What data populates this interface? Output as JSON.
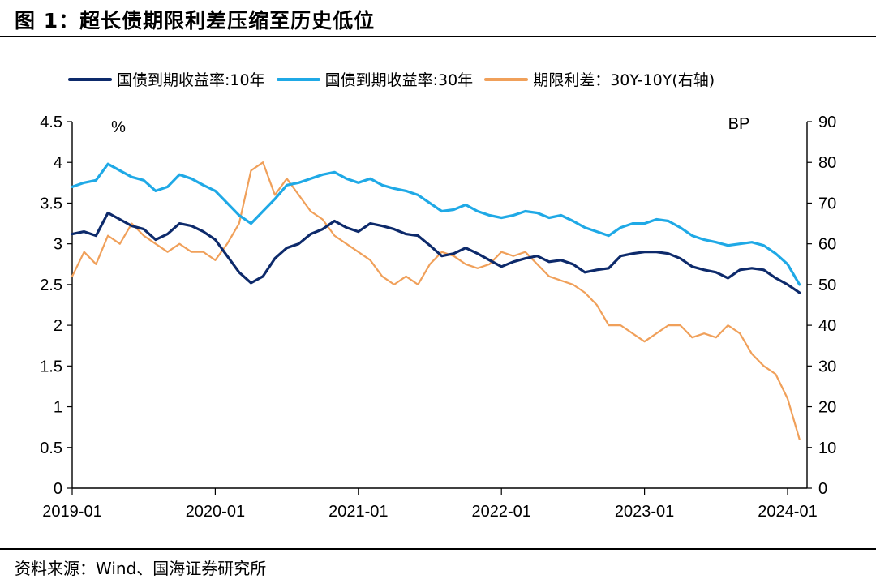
{
  "figure": {
    "title": "图 1：超长债期限利差压缩至历史低位",
    "source": "资料来源：Wind、国海证券研究所"
  },
  "chart_data": {
    "type": "line",
    "x_labels": [
      "2019-01",
      "2020-01",
      "2021-01",
      "2022-01",
      "2023-01",
      "2024-01"
    ],
    "left_axis": {
      "unit": "%",
      "ylim": [
        0,
        4.5
      ],
      "ticks": [
        "0",
        "0.5",
        "1",
        "1.5",
        "2",
        "2.5",
        "3",
        "3.5",
        "4",
        "4.5"
      ]
    },
    "right_axis": {
      "unit": "BP",
      "ylim": [
        0,
        90
      ],
      "ticks": [
        "0",
        "10",
        "20",
        "30",
        "40",
        "50",
        "60",
        "70",
        "80",
        "90"
      ]
    },
    "grid": false,
    "legend_position": "top",
    "series": [
      {
        "name": "国债到期收益率:10年",
        "axis": "left",
        "color": "#0d2a6b",
        "points": [
          [
            "2019-01",
            3.12
          ],
          [
            "2019-02",
            3.15
          ],
          [
            "2019-03",
            3.1
          ],
          [
            "2019-04",
            3.38
          ],
          [
            "2019-05",
            3.3
          ],
          [
            "2019-06",
            3.22
          ],
          [
            "2019-07",
            3.18
          ],
          [
            "2019-08",
            3.05
          ],
          [
            "2019-09",
            3.12
          ],
          [
            "2019-10",
            3.25
          ],
          [
            "2019-11",
            3.22
          ],
          [
            "2019-12",
            3.15
          ],
          [
            "2020-01",
            3.05
          ],
          [
            "2020-02",
            2.85
          ],
          [
            "2020-03",
            2.65
          ],
          [
            "2020-04",
            2.52
          ],
          [
            "2020-05",
            2.6
          ],
          [
            "2020-06",
            2.82
          ],
          [
            "2020-07",
            2.95
          ],
          [
            "2020-08",
            3.0
          ],
          [
            "2020-09",
            3.12
          ],
          [
            "2020-10",
            3.18
          ],
          [
            "2020-11",
            3.28
          ],
          [
            "2020-12",
            3.2
          ],
          [
            "2021-01",
            3.15
          ],
          [
            "2021-02",
            3.25
          ],
          [
            "2021-03",
            3.22
          ],
          [
            "2021-04",
            3.18
          ],
          [
            "2021-05",
            3.12
          ],
          [
            "2021-06",
            3.1
          ],
          [
            "2021-07",
            2.98
          ],
          [
            "2021-08",
            2.85
          ],
          [
            "2021-09",
            2.88
          ],
          [
            "2021-10",
            2.95
          ],
          [
            "2021-11",
            2.88
          ],
          [
            "2021-12",
            2.8
          ],
          [
            "2022-01",
            2.72
          ],
          [
            "2022-02",
            2.78
          ],
          [
            "2022-03",
            2.82
          ],
          [
            "2022-04",
            2.85
          ],
          [
            "2022-05",
            2.78
          ],
          [
            "2022-06",
            2.8
          ],
          [
            "2022-07",
            2.75
          ],
          [
            "2022-08",
            2.65
          ],
          [
            "2022-09",
            2.68
          ],
          [
            "2022-10",
            2.7
          ],
          [
            "2022-11",
            2.85
          ],
          [
            "2022-12",
            2.88
          ],
          [
            "2023-01",
            2.9
          ],
          [
            "2023-02",
            2.9
          ],
          [
            "2023-03",
            2.88
          ],
          [
            "2023-04",
            2.82
          ],
          [
            "2023-05",
            2.72
          ],
          [
            "2023-06",
            2.68
          ],
          [
            "2023-07",
            2.65
          ],
          [
            "2023-08",
            2.58
          ],
          [
            "2023-09",
            2.68
          ],
          [
            "2023-10",
            2.7
          ],
          [
            "2023-11",
            2.68
          ],
          [
            "2023-12",
            2.58
          ],
          [
            "2024-01",
            2.5
          ],
          [
            "2024-02",
            2.4
          ]
        ]
      },
      {
        "name": "国债到期收益率:30年",
        "axis": "left",
        "color": "#1fa9e6",
        "points": [
          [
            "2019-01",
            3.7
          ],
          [
            "2019-02",
            3.75
          ],
          [
            "2019-03",
            3.78
          ],
          [
            "2019-04",
            3.98
          ],
          [
            "2019-05",
            3.9
          ],
          [
            "2019-06",
            3.82
          ],
          [
            "2019-07",
            3.78
          ],
          [
            "2019-08",
            3.65
          ],
          [
            "2019-09",
            3.7
          ],
          [
            "2019-10",
            3.85
          ],
          [
            "2019-11",
            3.8
          ],
          [
            "2019-12",
            3.72
          ],
          [
            "2020-01",
            3.65
          ],
          [
            "2020-02",
            3.5
          ],
          [
            "2020-03",
            3.35
          ],
          [
            "2020-04",
            3.25
          ],
          [
            "2020-05",
            3.4
          ],
          [
            "2020-06",
            3.55
          ],
          [
            "2020-07",
            3.72
          ],
          [
            "2020-08",
            3.75
          ],
          [
            "2020-09",
            3.8
          ],
          [
            "2020-10",
            3.85
          ],
          [
            "2020-11",
            3.88
          ],
          [
            "2020-12",
            3.8
          ],
          [
            "2021-01",
            3.75
          ],
          [
            "2021-02",
            3.8
          ],
          [
            "2021-03",
            3.72
          ],
          [
            "2021-04",
            3.68
          ],
          [
            "2021-05",
            3.65
          ],
          [
            "2021-06",
            3.6
          ],
          [
            "2021-07",
            3.5
          ],
          [
            "2021-08",
            3.4
          ],
          [
            "2021-09",
            3.42
          ],
          [
            "2021-10",
            3.48
          ],
          [
            "2021-11",
            3.4
          ],
          [
            "2021-12",
            3.35
          ],
          [
            "2022-01",
            3.32
          ],
          [
            "2022-02",
            3.35
          ],
          [
            "2022-03",
            3.4
          ],
          [
            "2022-04",
            3.38
          ],
          [
            "2022-05",
            3.32
          ],
          [
            "2022-06",
            3.35
          ],
          [
            "2022-07",
            3.28
          ],
          [
            "2022-08",
            3.2
          ],
          [
            "2022-09",
            3.15
          ],
          [
            "2022-10",
            3.1
          ],
          [
            "2022-11",
            3.2
          ],
          [
            "2022-12",
            3.25
          ],
          [
            "2023-01",
            3.25
          ],
          [
            "2023-02",
            3.3
          ],
          [
            "2023-03",
            3.28
          ],
          [
            "2023-04",
            3.2
          ],
          [
            "2023-05",
            3.1
          ],
          [
            "2023-06",
            3.05
          ],
          [
            "2023-07",
            3.02
          ],
          [
            "2023-08",
            2.98
          ],
          [
            "2023-09",
            3.0
          ],
          [
            "2023-10",
            3.02
          ],
          [
            "2023-11",
            2.98
          ],
          [
            "2023-12",
            2.88
          ],
          [
            "2024-01",
            2.75
          ],
          [
            "2024-02",
            2.5
          ]
        ]
      },
      {
        "name": "期限利差：30Y-10Y(右轴)",
        "axis": "right",
        "color": "#f0a05a",
        "points": [
          [
            "2019-01",
            52
          ],
          [
            "2019-02",
            58
          ],
          [
            "2019-03",
            55
          ],
          [
            "2019-04",
            62
          ],
          [
            "2019-05",
            60
          ],
          [
            "2019-06",
            65
          ],
          [
            "2019-07",
            62
          ],
          [
            "2019-08",
            60
          ],
          [
            "2019-09",
            58
          ],
          [
            "2019-10",
            60
          ],
          [
            "2019-11",
            58
          ],
          [
            "2019-12",
            58
          ],
          [
            "2020-01",
            56
          ],
          [
            "2020-02",
            60
          ],
          [
            "2020-03",
            65
          ],
          [
            "2020-04",
            78
          ],
          [
            "2020-05",
            80
          ],
          [
            "2020-06",
            72
          ],
          [
            "2020-07",
            76
          ],
          [
            "2020-08",
            72
          ],
          [
            "2020-09",
            68
          ],
          [
            "2020-10",
            66
          ],
          [
            "2020-11",
            62
          ],
          [
            "2020-12",
            60
          ],
          [
            "2021-01",
            58
          ],
          [
            "2021-02",
            56
          ],
          [
            "2021-03",
            52
          ],
          [
            "2021-04",
            50
          ],
          [
            "2021-05",
            52
          ],
          [
            "2021-06",
            50
          ],
          [
            "2021-07",
            55
          ],
          [
            "2021-08",
            58
          ],
          [
            "2021-09",
            57
          ],
          [
            "2021-10",
            55
          ],
          [
            "2021-11",
            54
          ],
          [
            "2021-12",
            55
          ],
          [
            "2022-01",
            58
          ],
          [
            "2022-02",
            57
          ],
          [
            "2022-03",
            58
          ],
          [
            "2022-04",
            55
          ],
          [
            "2022-05",
            52
          ],
          [
            "2022-06",
            51
          ],
          [
            "2022-07",
            50
          ],
          [
            "2022-08",
            48
          ],
          [
            "2022-09",
            45
          ],
          [
            "2022-10",
            40
          ],
          [
            "2022-11",
            40
          ],
          [
            "2022-12",
            38
          ],
          [
            "2023-01",
            36
          ],
          [
            "2023-02",
            38
          ],
          [
            "2023-03",
            40
          ],
          [
            "2023-04",
            40
          ],
          [
            "2023-05",
            37
          ],
          [
            "2023-06",
            38
          ],
          [
            "2023-07",
            37
          ],
          [
            "2023-08",
            40
          ],
          [
            "2023-09",
            38
          ],
          [
            "2023-10",
            33
          ],
          [
            "2023-11",
            30
          ],
          [
            "2023-12",
            28
          ],
          [
            "2024-01",
            22
          ],
          [
            "2024-02",
            12
          ]
        ]
      }
    ]
  }
}
